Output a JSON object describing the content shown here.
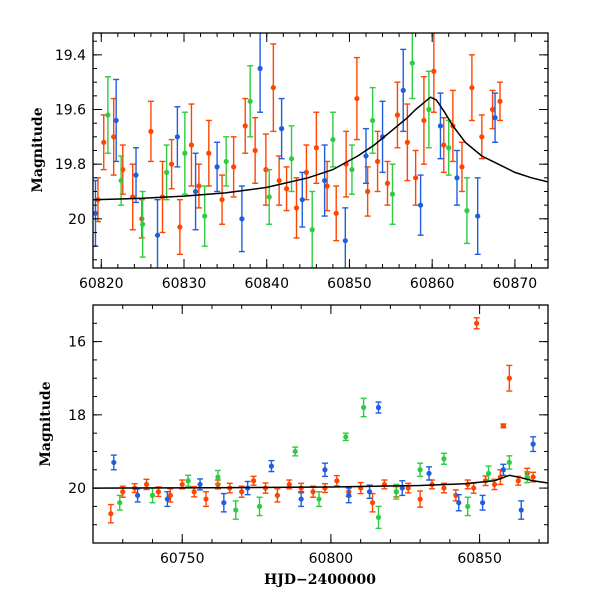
{
  "chart_data": [
    {
      "panel": "top",
      "type": "scatter",
      "title": "",
      "xlabel": "",
      "ylabel": "Magnitude",
      "xlim": [
        60819,
        60874
      ],
      "ylim": [
        20.18,
        19.32
      ],
      "y_inverted": true,
      "xticks": [
        60820,
        60830,
        60840,
        60850,
        60860,
        60870
      ],
      "xtick_labels": [
        "60820",
        "60830",
        "60840",
        "60850",
        "60860",
        "60870"
      ],
      "yticks": [
        19.4,
        19.6,
        19.8,
        20.0
      ],
      "ytick_labels": [
        "19.4",
        "19.6",
        "19.8",
        "20"
      ],
      "grid": false,
      "legend": "none",
      "series": [
        {
          "color": "#ff4500",
          "x": [
            60819.6,
            60820.3,
            60821.5,
            60822.6,
            60823.8,
            60824.9,
            60826.0,
            60827.4,
            60828.5,
            60829.5,
            60830.9,
            60831.8,
            60833.0,
            60834.6,
            60836.0,
            60837.4,
            60838.6,
            60839.9,
            60840.8,
            60841.5,
            60842.4,
            60843.6,
            60844.8,
            60846.0,
            60847.3,
            60848.4,
            60849.6,
            60850.9,
            60852.2,
            60853.4,
            60854.6,
            60855.8,
            60857.0,
            60858.0,
            60859.0,
            60860.2,
            60861.4,
            60862.5,
            60863.6,
            60864.8,
            60866.0,
            60867.3,
            60868.2
          ],
          "y": [
            19.93,
            19.72,
            19.7,
            19.82,
            19.92,
            20.0,
            19.68,
            19.92,
            19.8,
            20.03,
            19.73,
            19.88,
            19.76,
            19.93,
            19.81,
            19.66,
            19.75,
            19.82,
            19.52,
            19.86,
            19.89,
            19.96,
            19.83,
            19.74,
            19.88,
            19.98,
            19.8,
            19.56,
            19.9,
            19.79,
            19.87,
            19.62,
            19.72,
            19.85,
            19.64,
            19.46,
            19.73,
            19.66,
            19.81,
            19.52,
            19.7,
            19.6,
            19.57
          ],
          "err": [
            0.08,
            0.1,
            0.14,
            0.09,
            0.12,
            0.07,
            0.11,
            0.13,
            0.09,
            0.1,
            0.15,
            0.08,
            0.12,
            0.09,
            0.11,
            0.1,
            0.12,
            0.13,
            0.16,
            0.09,
            0.08,
            0.11,
            0.1,
            0.13,
            0.09,
            0.1,
            0.12,
            0.15,
            0.09,
            0.11,
            0.08,
            0.12,
            0.14,
            0.1,
            0.16,
            0.15,
            0.1,
            0.13,
            0.09,
            0.12,
            0.08,
            0.07,
            0.07
          ]
        },
        {
          "color": "#2ecc40",
          "x": [
            60820.8,
            60822.4,
            60825.0,
            60827.9,
            60830.1,
            60832.5,
            60835.1,
            60838.0,
            60840.3,
            60843.0,
            60845.5,
            60848.0,
            60850.3,
            60852.8,
            60855.2,
            60857.6,
            60859.6,
            60862.0,
            60864.2
          ],
          "y": [
            19.62,
            19.86,
            20.02,
            19.83,
            19.76,
            19.99,
            19.79,
            19.57,
            19.92,
            19.78,
            20.04,
            19.71,
            19.82,
            19.64,
            19.91,
            19.43,
            19.6,
            19.74,
            19.97
          ],
          "err": [
            0.14,
            0.09,
            0.12,
            0.1,
            0.15,
            0.11,
            0.09,
            0.13,
            0.1,
            0.12,
            0.14,
            0.1,
            0.09,
            0.12,
            0.11,
            0.13,
            0.14,
            0.1,
            0.12
          ]
        },
        {
          "color": "#1f5fdf",
          "x": [
            60819.3,
            60821.8,
            60824.2,
            60826.8,
            60829.2,
            60831.4,
            60834.0,
            60837.0,
            60839.2,
            60841.8,
            60844.3,
            60847.0,
            60849.5,
            60852.0,
            60854.0,
            60856.5,
            60858.6,
            60861.0,
            60863.0,
            60865.5,
            60867.6
          ],
          "y": [
            19.98,
            19.64,
            19.84,
            20.06,
            19.7,
            19.9,
            19.81,
            20.0,
            19.45,
            19.67,
            19.93,
            19.86,
            20.08,
            19.77,
            19.7,
            19.53,
            19.95,
            19.66,
            19.85,
            19.99,
            19.63
          ],
          "err": [
            0.12,
            0.15,
            0.1,
            0.13,
            0.11,
            0.14,
            0.09,
            0.12,
            0.16,
            0.11,
            0.1,
            0.13,
            0.12,
            0.1,
            0.13,
            0.15,
            0.11,
            0.12,
            0.1,
            0.14,
            0.09
          ]
        }
      ],
      "model_curve": {
        "color": "#000000",
        "x": [
          60819,
          60825,
          60830,
          60835,
          60840,
          60845,
          60848,
          60851,
          60853,
          60855,
          60857,
          60858,
          60859,
          60859.8,
          60860.5,
          60861.5,
          60862.5,
          60864,
          60866,
          60868,
          60870,
          60872,
          60874
        ],
        "y": [
          19.93,
          19.925,
          19.917,
          19.905,
          19.885,
          19.85,
          19.82,
          19.77,
          19.73,
          19.68,
          19.63,
          19.6,
          19.575,
          19.555,
          19.565,
          19.61,
          19.66,
          19.72,
          19.77,
          19.8,
          19.83,
          19.85,
          19.865
        ]
      }
    },
    {
      "panel": "bottom",
      "type": "scatter",
      "title": "",
      "xlabel": "HJD−2400000",
      "ylabel": "Magnitude",
      "xlim": [
        60720,
        60873
      ],
      "ylim": [
        21.5,
        15.0
      ],
      "y_inverted": true,
      "xticks": [
        60750,
        60800,
        60850
      ],
      "xtick_labels": [
        "60750",
        "60800",
        "60850"
      ],
      "yticks": [
        16,
        18,
        20
      ],
      "ytick_labels": [
        "16",
        "18",
        "20"
      ],
      "grid": false,
      "legend": "none",
      "series": [
        {
          "color": "#ff4500",
          "x": [
            60726,
            60730,
            60734,
            60738,
            60742,
            60746,
            60750,
            60754,
            60758,
            60762,
            60766,
            60770,
            60774,
            60778,
            60782,
            60786,
            60790,
            60794,
            60798,
            60802,
            60806,
            60810,
            60814,
            60818,
            60822,
            60826,
            60830,
            60834,
            60838,
            60842,
            60846,
            60848,
            60849,
            60852,
            60855,
            60857,
            60858,
            60860,
            60863,
            60866,
            60868
          ],
          "y": [
            20.7,
            20.1,
            20.0,
            19.9,
            20.1,
            20.2,
            19.9,
            20.1,
            20.3,
            19.9,
            20.0,
            20.1,
            19.8,
            20.0,
            20.2,
            19.9,
            20.0,
            20.1,
            20.0,
            19.8,
            20.1,
            20.0,
            20.4,
            19.9,
            20.1,
            20.0,
            20.3,
            19.9,
            20.0,
            20.2,
            19.9,
            20.0,
            15.5,
            19.8,
            19.9,
            19.7,
            18.3,
            17.0,
            19.8,
            19.6,
            19.7
          ],
          "err": [
            0.25,
            0.15,
            0.12,
            0.14,
            0.13,
            0.18,
            0.12,
            0.14,
            0.2,
            0.12,
            0.13,
            0.15,
            0.12,
            0.14,
            0.18,
            0.12,
            0.13,
            0.15,
            0.12,
            0.14,
            0.13,
            0.15,
            0.25,
            0.12,
            0.14,
            0.13,
            0.22,
            0.12,
            0.13,
            0.15,
            0.12,
            0.14,
            0.15,
            0.13,
            0.14,
            0.2,
            0.05,
            0.35,
            0.12,
            0.14,
            0.13
          ]
        },
        {
          "color": "#2ecc40",
          "x": [
            60729,
            60740,
            60752,
            60762,
            60768,
            60776,
            60788,
            60796,
            60805,
            60811,
            60816,
            60822,
            60830,
            60838,
            60846,
            60853,
            60860,
            60866
          ],
          "y": [
            20.4,
            20.2,
            19.8,
            19.7,
            20.6,
            20.5,
            19.0,
            20.3,
            18.6,
            17.8,
            20.8,
            20.1,
            19.5,
            19.2,
            20.5,
            19.6,
            19.3,
            19.7
          ],
          "err": [
            0.2,
            0.2,
            0.15,
            0.18,
            0.25,
            0.25,
            0.12,
            0.2,
            0.1,
            0.25,
            0.3,
            0.2,
            0.18,
            0.15,
            0.25,
            0.2,
            0.18,
            0.15
          ]
        },
        {
          "color": "#1f5fdf",
          "x": [
            60727,
            60735,
            60745,
            60756,
            60764,
            60772,
            60780,
            60790,
            60798,
            60806,
            60813,
            60816,
            60824,
            60833,
            60843,
            60851,
            60858,
            60864,
            60868
          ],
          "y": [
            19.3,
            20.2,
            20.3,
            19.9,
            20.4,
            20.0,
            19.4,
            20.3,
            19.5,
            20.2,
            20.1,
            17.8,
            20.0,
            19.6,
            20.4,
            20.4,
            19.5,
            20.6,
            18.8
          ],
          "err": [
            0.2,
            0.18,
            0.2,
            0.15,
            0.25,
            0.18,
            0.15,
            0.2,
            0.18,
            0.2,
            0.18,
            0.15,
            0.2,
            0.18,
            0.22,
            0.2,
            0.15,
            0.25,
            0.2
          ]
        }
      ],
      "model_curve": {
        "color": "#000000",
        "x": [
          60720,
          60760,
          60800,
          60830,
          60845,
          60855,
          60860,
          60864,
          60868,
          60873
        ],
        "y": [
          20.0,
          19.99,
          19.97,
          19.93,
          19.88,
          19.8,
          19.65,
          19.72,
          19.8,
          19.86
        ]
      }
    }
  ]
}
